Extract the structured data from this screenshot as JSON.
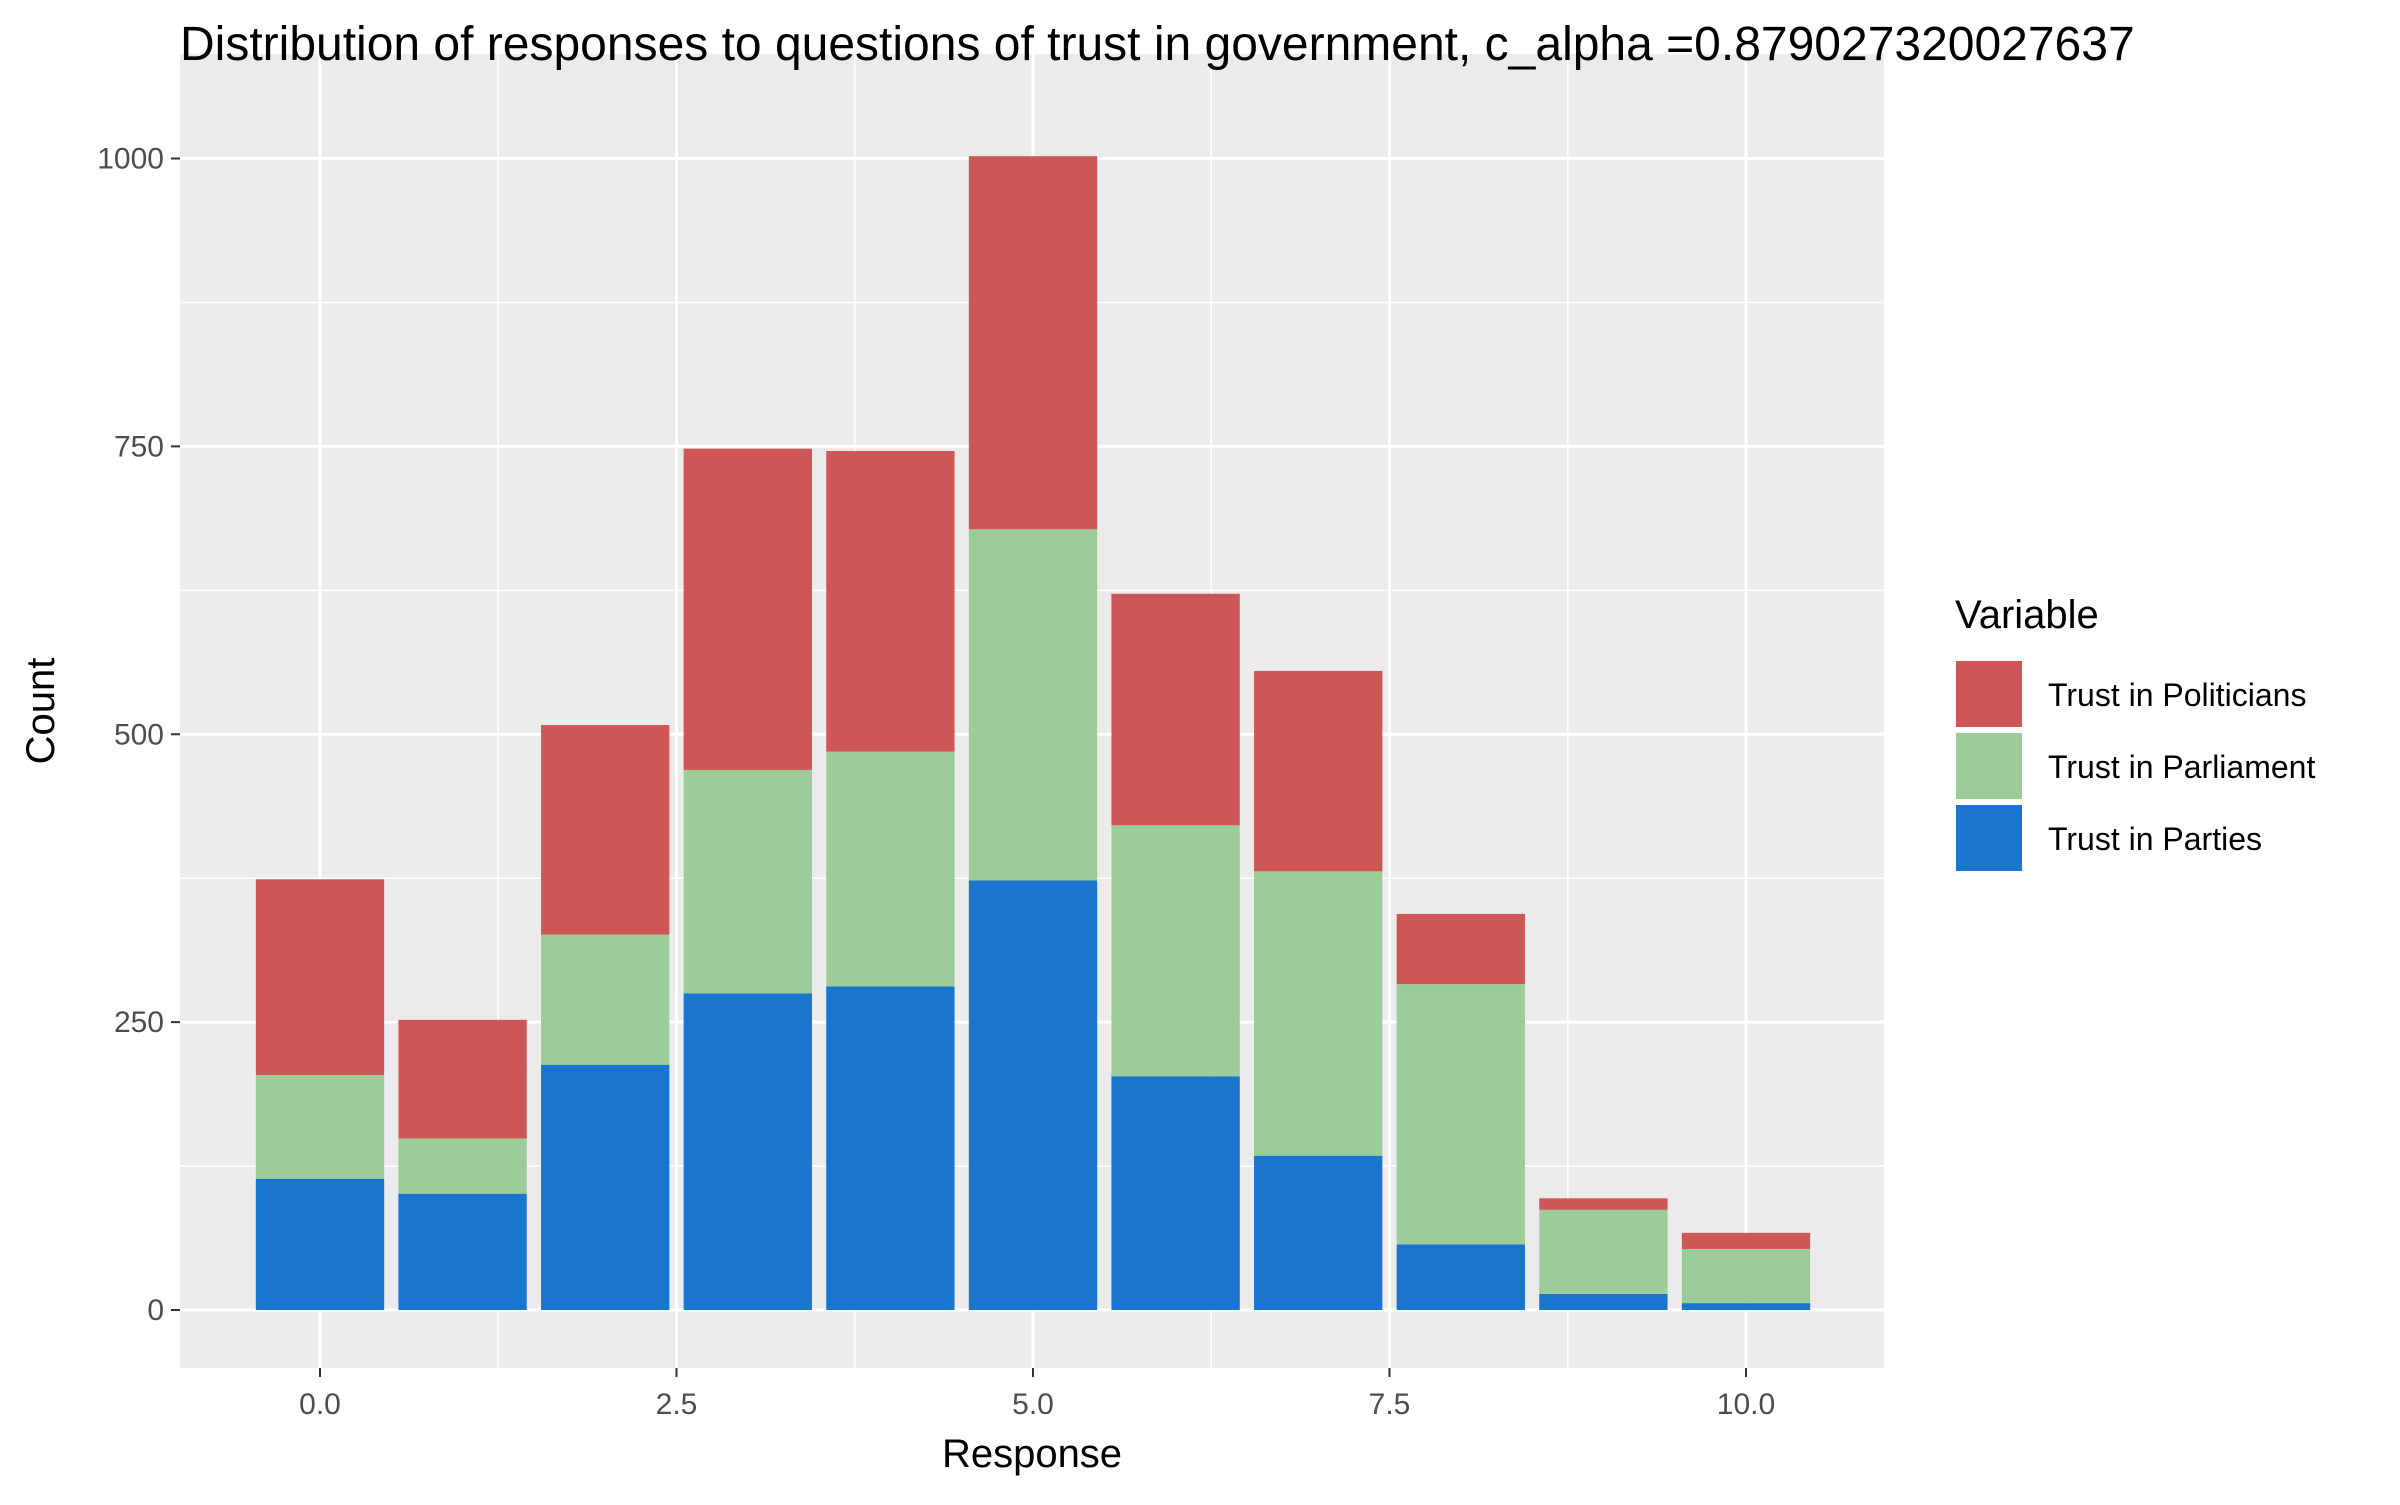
{
  "chart_data": {
    "type": "bar",
    "stacked": true,
    "title": "Distribution of responses to questions of trust in government, c_alpha =0.879027320027637",
    "xlabel": "Response",
    "ylabel": "Count",
    "x": [
      0,
      1,
      2,
      3,
      4,
      5,
      6,
      7,
      8,
      9,
      10
    ],
    "xlim": [
      -0.5,
      10.5
    ],
    "ylim": [
      0,
      1000
    ],
    "x_ticks": [
      0.0,
      2.5,
      5.0,
      7.5,
      10.0
    ],
    "x_tick_labels": [
      "0.0",
      "2.5",
      "5.0",
      "7.5",
      "10.0"
    ],
    "y_ticks": [
      0,
      250,
      500,
      750,
      1000
    ],
    "y_tick_labels": [
      "0",
      "250",
      "500",
      "750",
      "1000"
    ],
    "grid": true,
    "legend": {
      "title": "Variable",
      "placement": "right",
      "entries": [
        "Trust in Politicians",
        "Trust in Parliament",
        "Trust in Parties"
      ]
    },
    "series": [
      {
        "name": "Trust in Parties",
        "color": "#1a75cf",
        "values": [
          114,
          101,
          213,
          275,
          281,
          373,
          203,
          134,
          57,
          14,
          6
        ]
      },
      {
        "name": "Trust in Parliament",
        "color": "#9ccd98",
        "values": [
          90,
          48,
          113,
          194,
          204,
          305,
          218,
          247,
          226,
          73,
          47
        ]
      },
      {
        "name": "Trust in Politicians",
        "color": "#cd5656",
        "values": [
          170,
          103,
          182,
          279,
          261,
          324,
          201,
          174,
          61,
          10,
          14
        ]
      }
    ]
  }
}
